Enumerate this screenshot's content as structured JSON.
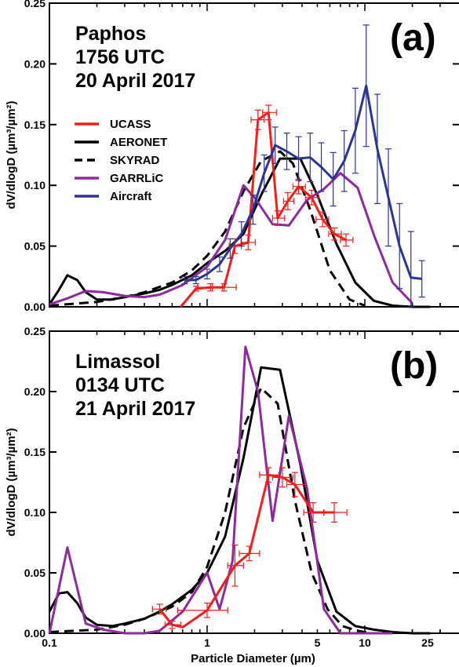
{
  "colors": {
    "UCASS": "#ff1a1a",
    "AERONET": "#000000",
    "SKYRAD": "#000000",
    "GARRLiC": "#8e2a9e",
    "Aircraft": "#2b3594"
  },
  "chart_data": [
    {
      "type": "line",
      "panel_label": "(a)",
      "annotation": [
        "Paphos",
        "1756 UTC",
        "20 April 2017"
      ],
      "xlabel": "",
      "ylabel": "dV/dlogD (µm³/µm²)",
      "x_scale": "log",
      "xlim": [
        0.1,
        40
      ],
      "ylim": [
        0,
        0.25
      ],
      "x_ticks": [],
      "y_ticks": [
        "0.00",
        "0.05",
        "0.10",
        "0.15",
        "0.20",
        "0.25"
      ],
      "legend": {
        "position": "middle-left",
        "entries": [
          "UCASS",
          "AERONET",
          "SKYRAD",
          "GARRLiC",
          "Aircraft"
        ]
      },
      "series": [
        {
          "name": "AERONET",
          "style": "solid",
          "x": [
            0.1,
            0.115,
            0.13,
            0.15,
            0.17,
            0.2,
            0.25,
            0.3,
            0.4,
            0.5,
            0.6,
            0.8,
            1.0,
            1.3,
            1.7,
            2.2,
            2.9,
            3.9,
            5.0,
            6.6,
            8.7,
            11.4,
            15.0,
            20.0,
            26.0
          ],
          "y": [
            0.002,
            0.014,
            0.026,
            0.022,
            0.012,
            0.006,
            0.006,
            0.008,
            0.011,
            0.014,
            0.018,
            0.026,
            0.036,
            0.046,
            0.06,
            0.092,
            0.122,
            0.122,
            0.092,
            0.052,
            0.02,
            0.005,
            0.001,
            0.0,
            0.0
          ]
        },
        {
          "name": "SKYRAD",
          "style": "dashed",
          "x": [
            0.1,
            0.2,
            0.3,
            0.4,
            0.6,
            0.8,
            1.0,
            1.3,
            1.7,
            2.2,
            2.9,
            3.5,
            4.5,
            6.0,
            8.0,
            10.0
          ],
          "y": [
            0.001,
            0.004,
            0.008,
            0.012,
            0.02,
            0.03,
            0.042,
            0.062,
            0.095,
            0.12,
            0.128,
            0.118,
            0.08,
            0.03,
            0.006,
            0.001
          ]
        },
        {
          "name": "GARRLiC",
          "style": "solid",
          "x": [
            0.1,
            0.13,
            0.17,
            0.22,
            0.3,
            0.4,
            0.5,
            0.7,
            1.0,
            1.3,
            1.7,
            2.0,
            2.6,
            3.3,
            4.3,
            5.5,
            7.0,
            9.0,
            11.5,
            15.0,
            20.0
          ],
          "y": [
            0.002,
            0.007,
            0.013,
            0.012,
            0.009,
            0.008,
            0.01,
            0.018,
            0.033,
            0.055,
            0.1,
            0.09,
            0.068,
            0.067,
            0.088,
            0.097,
            0.11,
            0.098,
            0.058,
            0.02,
            0.003
          ]
        },
        {
          "name": "UCASS",
          "style": "solid",
          "errorbars": true,
          "x": [
            0.68,
            0.85,
            1.05,
            1.28,
            1.5,
            1.82,
            2.1,
            2.45,
            2.8,
            3.25,
            3.8,
            4.6,
            5.4,
            6.4,
            7.6
          ],
          "y": [
            0.0,
            0.015,
            0.016,
            0.016,
            0.05,
            0.053,
            0.154,
            0.16,
            0.073,
            0.087,
            0.099,
            0.09,
            0.072,
            0.06,
            0.055
          ],
          "yerr": [
            0.0,
            0.002,
            0.003,
            0.003,
            0.006,
            0.006,
            0.008,
            0.006,
            0.006,
            0.007,
            0.006,
            0.006,
            0.006,
            0.005,
            0.005
          ],
          "xerr_lo": [
            0.0,
            0.0,
            0.18,
            0.2,
            0.12,
            0.18,
            0.2,
            0.2,
            0.2,
            0.2,
            0.3,
            0.4,
            0.5,
            0.5,
            0.6
          ],
          "xerr_hi": [
            0.0,
            0.0,
            0.2,
            0.25,
            0.15,
            0.2,
            0.2,
            0.3,
            0.3,
            0.3,
            0.4,
            0.5,
            0.5,
            0.7,
            0.8
          ]
        },
        {
          "name": "Aircraft",
          "style": "solid",
          "errorbars": true,
          "x": [
            0.72,
            0.85,
            1.0,
            1.2,
            1.4,
            1.65,
            1.95,
            2.3,
            2.7,
            3.2,
            3.8,
            4.5,
            5.3,
            6.3,
            7.4,
            8.7,
            10.2,
            12.0,
            14.1,
            16.6,
            19.6,
            23.0
          ],
          "y": [
            0.022,
            0.022,
            0.027,
            0.035,
            0.048,
            0.06,
            0.08,
            0.11,
            0.133,
            0.128,
            0.122,
            0.123,
            0.115,
            0.105,
            0.12,
            0.145,
            0.182,
            0.13,
            0.09,
            0.05,
            0.024,
            0.023
          ],
          "yerr": [
            0.003,
            0.003,
            0.004,
            0.006,
            0.008,
            0.01,
            0.012,
            0.015,
            0.015,
            0.015,
            0.018,
            0.02,
            0.02,
            0.022,
            0.025,
            0.035,
            0.05,
            0.045,
            0.04,
            0.035,
            0.038,
            0.015
          ]
        }
      ]
    },
    {
      "type": "line",
      "panel_label": "(b)",
      "annotation": [
        "Limassol",
        "0134 UTC",
        "21 April 2017"
      ],
      "xlabel": "Particle Diameter (µm)",
      "ylabel": "dV/dlogD (µm³/µm²)",
      "x_scale": "log",
      "xlim": [
        0.1,
        40
      ],
      "ylim": [
        0,
        0.25
      ],
      "x_ticks": [
        "0.1",
        "1",
        "5",
        "10",
        "25"
      ],
      "y_ticks": [
        "0.00",
        "0.05",
        "0.10",
        "0.15",
        "0.20",
        "0.25"
      ],
      "series": [
        {
          "name": "AERONET",
          "style": "solid",
          "x": [
            0.1,
            0.115,
            0.13,
            0.15,
            0.17,
            0.2,
            0.25,
            0.3,
            0.4,
            0.5,
            0.6,
            0.8,
            1.0,
            1.3,
            1.7,
            2.2,
            2.9,
            3.9,
            5.0,
            6.6,
            8.7,
            11.4,
            15.0,
            20.0,
            26.0
          ],
          "y": [
            0.018,
            0.033,
            0.034,
            0.025,
            0.013,
            0.007,
            0.006,
            0.008,
            0.012,
            0.018,
            0.024,
            0.036,
            0.05,
            0.08,
            0.145,
            0.22,
            0.218,
            0.14,
            0.06,
            0.018,
            0.006,
            0.003,
            0.001,
            0.0,
            0.0
          ]
        },
        {
          "name": "SKYRAD",
          "style": "dashed",
          "x": [
            0.1,
            0.2,
            0.3,
            0.4,
            0.6,
            0.8,
            1.0,
            1.3,
            1.7,
            2.2,
            2.8,
            3.6,
            4.6,
            5.8,
            7.2,
            9.0,
            11.0
          ],
          "y": [
            0.001,
            0.003,
            0.007,
            0.012,
            0.022,
            0.034,
            0.055,
            0.1,
            0.17,
            0.203,
            0.19,
            0.11,
            0.05,
            0.02,
            0.006,
            0.002,
            0.0
          ]
        },
        {
          "name": "GARRLiC",
          "style": "solid",
          "x": [
            0.1,
            0.13,
            0.17,
            0.22,
            0.3,
            0.4,
            0.5,
            0.7,
            1.0,
            1.2,
            1.45,
            1.75,
            2.1,
            2.6,
            3.3,
            4.3,
            5.5,
            7.0,
            9.0,
            11.5,
            15.0
          ],
          "y": [
            0.0,
            0.071,
            0.008,
            0.003,
            0.0,
            0.0,
            0.002,
            0.018,
            0.05,
            0.02,
            0.06,
            0.237,
            0.2,
            0.093,
            0.18,
            0.12,
            0.02,
            0.0,
            0.0,
            0.0,
            0.0
          ]
        },
        {
          "name": "UCASS",
          "style": "solid",
          "errorbars": true,
          "x": [
            0.5,
            0.6,
            0.7,
            1.0,
            1.5,
            1.85,
            2.45,
            3.0,
            3.6,
            4.7,
            6.4
          ],
          "y": [
            0.02,
            0.007,
            0.005,
            0.019,
            0.056,
            0.066,
            0.131,
            0.129,
            0.123,
            0.1,
            0.1
          ],
          "yerr": [
            0.004,
            0.003,
            0.0,
            0.006,
            0.017,
            0.006,
            0.006,
            0.008,
            0.01,
            0.008,
            0.008
          ],
          "xerr_lo": [
            0.05,
            0.06,
            0.0,
            0.35,
            0.15,
            0.25,
            0.3,
            0.4,
            0.4,
            0.6,
            0.9
          ],
          "xerr_hi": [
            0.05,
            0.08,
            0.0,
            0.35,
            0.2,
            0.3,
            0.4,
            0.5,
            0.6,
            0.8,
            1.3
          ]
        }
      ]
    }
  ]
}
